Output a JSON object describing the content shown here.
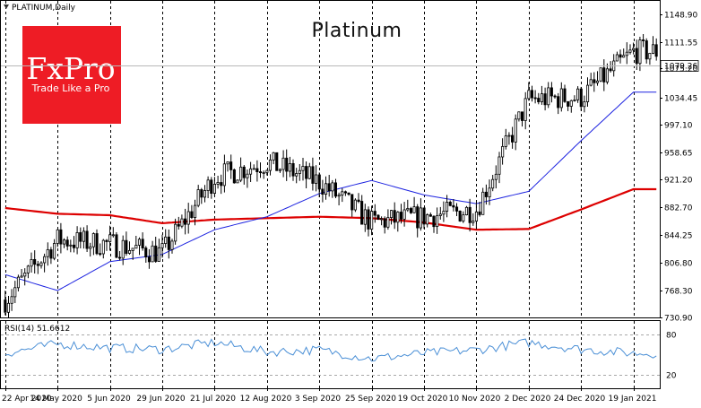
{
  "header": {
    "symbol": "PLATINUM,Daily"
  },
  "logo": {
    "brand": "FxPro",
    "tagline": "Trade Like a Pro",
    "color": "#ee1c25"
  },
  "chart_data": [
    {
      "type": "candlestick",
      "title": "Platinum",
      "ylim": [
        730.9,
        1168
      ],
      "y_ticks": [
        "1148.90",
        "1111.55",
        "1075.20",
        "1034.45",
        "997.10",
        "958.65",
        "921.20",
        "882.70",
        "844.25",
        "806.80",
        "768.30",
        "730.90"
      ],
      "last_price": "1079.26",
      "x_labels": [
        "22 Apr 2020",
        "14 May 2020",
        "5 Jun 2020",
        "29 Jun 2020",
        "21 Jul 2020",
        "12 Aug 2020",
        "3 Sep 2020",
        "25 Sep 2020",
        "19 Oct 2020",
        "10 Nov 2020",
        "2 Dec 2020",
        "24 Dec 2020",
        "19 Jan 2021"
      ],
      "bars_per_label": 16,
      "grid": "vertical dashed",
      "candle_color": "#000000",
      "approx_close_path": [
        [
          "22 Apr 2020",
          755
        ],
        [
          "14 May 2020",
          838
        ],
        [
          "5 Jun 2020",
          832
        ],
        [
          "29 Jun 2020",
          820
        ],
        [
          "21 Jul 2020",
          925
        ],
        [
          "12 Aug 2020",
          945
        ],
        [
          "3 Sep 2020",
          918
        ],
        [
          "25 Sep 2020",
          862
        ],
        [
          "19 Oct 2020",
          870
        ],
        [
          "10 Nov 2020",
          880
        ],
        [
          "2 Dec 2020",
          1032
        ],
        [
          "24 Dec 2020",
          1035
        ],
        [
          "19 Jan 2021",
          1098
        ]
      ],
      "series": [
        {
          "name": "",
          "type": "line",
          "color": "#dd0000",
          "points": [
            [
              "22 Apr 2020",
              882
            ],
            [
              "14 May 2020",
              874
            ],
            [
              "5 Jun 2020",
              872
            ],
            [
              "29 Jun 2020",
              861
            ],
            [
              "21 Jul 2020",
              866
            ],
            [
              "12 Aug 2020",
              868
            ],
            [
              "3 Sep 2020",
              870
            ],
            [
              "25 Sep 2020",
              868
            ],
            [
              "19 Oct 2020",
              862
            ],
            [
              "10 Nov 2020",
              852
            ],
            [
              "2 Dec 2020",
              853
            ],
            [
              "24 Dec 2020",
              880
            ],
            [
              "19 Jan 2021",
              908
            ]
          ]
        },
        {
          "name": "",
          "type": "line",
          "color": "#1c22e0",
          "points": [
            [
              "22 Apr 2020",
              790
            ],
            [
              "14 May 2020",
              768
            ],
            [
              "5 Jun 2020",
              808
            ],
            [
              "29 Jun 2020",
              818
            ],
            [
              "21 Jul 2020",
              852
            ],
            [
              "12 Aug 2020",
              870
            ],
            [
              "3 Sep 2020",
              902
            ],
            [
              "25 Sep 2020",
              920
            ],
            [
              "19 Oct 2020",
              900
            ],
            [
              "10 Nov 2020",
              888
            ],
            [
              "2 Dec 2020",
              905
            ],
            [
              "24 Dec 2020",
              975
            ],
            [
              "19 Jan 2021",
              1042
            ]
          ]
        }
      ]
    },
    {
      "type": "line",
      "title": "RSI(14) 51.6612",
      "ylim": [
        0,
        100
      ],
      "y_ticks": [
        "80",
        "20"
      ],
      "levels": [
        80,
        20
      ],
      "series": [
        {
          "name": "",
          "color": "#4a8fd6",
          "points": [
            [
              "22 Apr 2020",
              52
            ],
            [
              "14 May 2020",
              66
            ],
            [
              "5 Jun 2020",
              60
            ],
            [
              "29 Jun 2020",
              58
            ],
            [
              "21 Jul 2020",
              68
            ],
            [
              "12 Aug 2020",
              54
            ],
            [
              "3 Sep 2020",
              57
            ],
            [
              "25 Sep 2020",
              44
            ],
            [
              "19 Oct 2020",
              52
            ],
            [
              "10 Nov 2020",
              57
            ],
            [
              "2 Dec 2020",
              68
            ],
            [
              "24 Dec 2020",
              58
            ],
            [
              "19 Jan 2021",
              52
            ]
          ]
        }
      ]
    }
  ]
}
